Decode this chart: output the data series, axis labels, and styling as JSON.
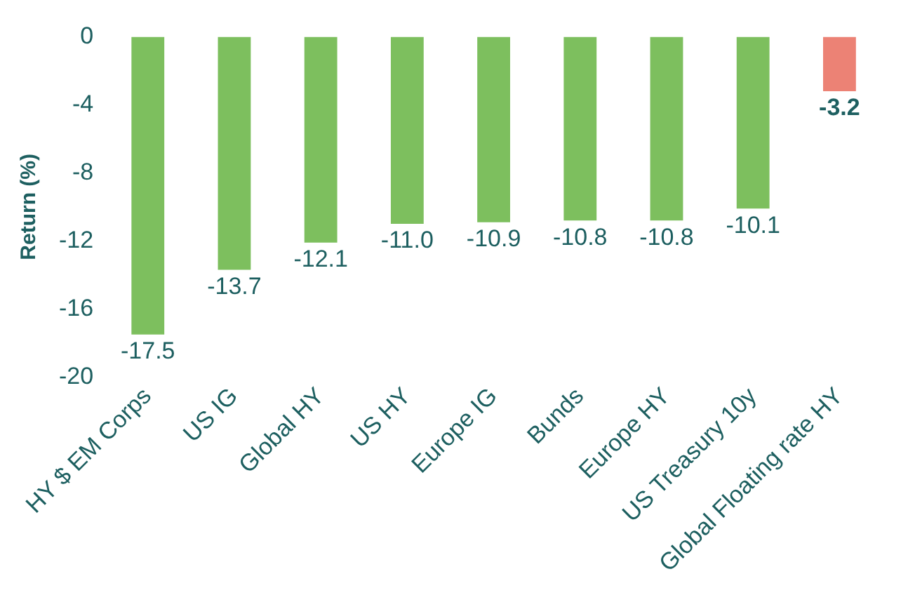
{
  "chart_data": {
    "type": "bar",
    "ylabel": "Return (%)",
    "categories": [
      "HY $ EM Corps",
      "US IG",
      "Global HY",
      "US HY",
      "Europe IG",
      "Bunds",
      "Europe HY",
      "US Treasury 10y",
      "Global Floating rate HY"
    ],
    "values": [
      -17.5,
      -13.7,
      -12.1,
      -11.0,
      -10.9,
      -10.8,
      -10.8,
      -10.1,
      -3.2
    ],
    "colors": [
      "#7dbf5e",
      "#7dbf5e",
      "#7dbf5e",
      "#7dbf5e",
      "#7dbf5e",
      "#7dbf5e",
      "#7dbf5e",
      "#7dbf5e",
      "#ec8275"
    ],
    "value_labels": [
      "-17.5",
      "-13.7",
      "-12.1",
      "-11.0",
      "-10.9",
      "-10.8",
      "-10.8",
      "-10.1",
      "-3.2"
    ],
    "ylim": [
      -20,
      0
    ],
    "yticks": [
      0,
      -4,
      -8,
      -12,
      -16,
      -20
    ],
    "grid": false,
    "legend": false
  }
}
